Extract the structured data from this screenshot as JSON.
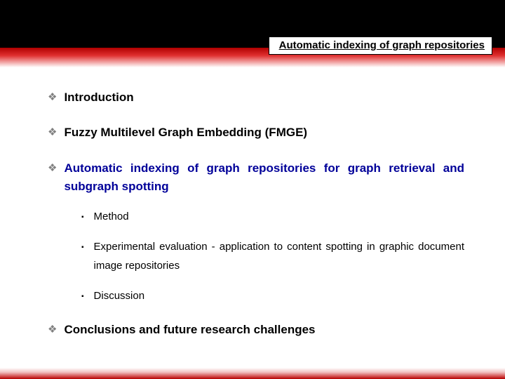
{
  "colors": {
    "top_bar": "#000000",
    "title_box_bg": "#ffffff",
    "title_box_border": "#000000",
    "red_gradient_top": "#b00000",
    "red_gradient_bottom": "#ffffff",
    "bullet_lvl1": "#808080",
    "text_default": "#000000",
    "text_active": "#000099",
    "background": "#ffffff"
  },
  "typography": {
    "title_fontsize": 15,
    "lvl1_fontsize": 17,
    "lvl2_fontsize": 15,
    "font_family": "Arial"
  },
  "header": {
    "title": "Automatic indexing of graph repositories"
  },
  "outline": {
    "items": [
      {
        "label": "Introduction",
        "active": false
      },
      {
        "label": "Fuzzy Multilevel Graph Embedding (FMGE)",
        "active": false
      },
      {
        "label": "Automatic indexing of graph repositories for graph retrieval and subgraph spotting",
        "active": true,
        "sub": [
          {
            "label": "Method"
          },
          {
            "label": "Experimental evaluation - application to content spotting in graphic document image repositories"
          },
          {
            "label": "Discussion"
          }
        ]
      },
      {
        "label": "Conclusions and future research challenges",
        "active": false
      }
    ]
  },
  "bullets": {
    "lvl1": "❖",
    "lvl2": "▪"
  }
}
